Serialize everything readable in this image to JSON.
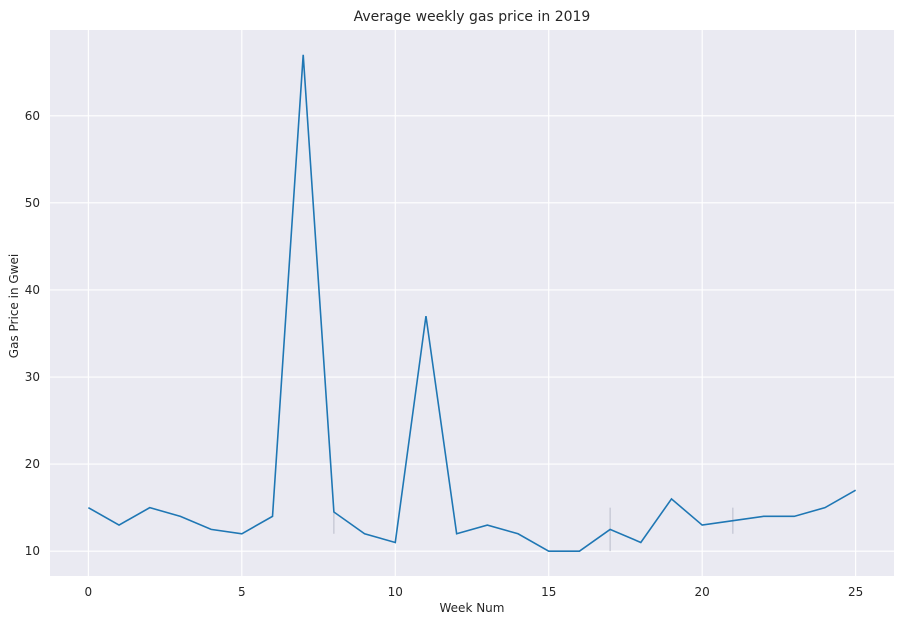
{
  "chart_data": {
    "type": "line",
    "title": "Average weekly gas price in 2019",
    "xlabel": "Week Num",
    "ylabel": "Gas Price in Gwei",
    "xlim": [
      -1.25,
      26.25
    ],
    "ylim": [
      7.15,
      69.85
    ],
    "xticks": [
      0,
      5,
      10,
      15,
      20,
      25
    ],
    "yticks": [
      10,
      20,
      30,
      40,
      50,
      60
    ],
    "grid": true,
    "background": "#eaeaf2",
    "line_color": "#1f77b4",
    "series": [
      {
        "x": [
          0,
          1,
          2,
          3,
          4,
          5,
          6,
          7,
          8,
          9,
          10,
          11,
          12,
          13,
          14,
          15,
          16,
          17,
          18,
          19,
          20,
          21,
          22,
          23,
          24,
          25
        ],
        "values": [
          15,
          13,
          15,
          14,
          12.5,
          12,
          14,
          67,
          14.5,
          12,
          11,
          37,
          12,
          13,
          12,
          10,
          10,
          12.5,
          11,
          16,
          13,
          13.5,
          14,
          14,
          15,
          17
        ]
      }
    ],
    "error_bars": [
      {
        "x": 8,
        "low": 12,
        "high": 14.5
      },
      {
        "x": 17,
        "low": 10,
        "high": 15
      },
      {
        "x": 21,
        "low": 12,
        "high": 15
      }
    ]
  }
}
